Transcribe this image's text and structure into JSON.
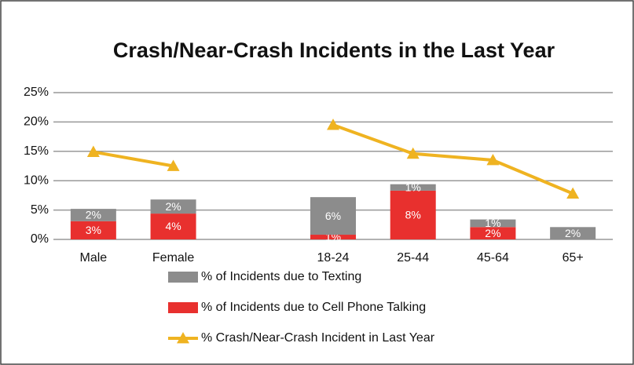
{
  "chart_data": {
    "type": "bar-line",
    "title": "Crash/Near-Crash Incidents in the Last Year",
    "categories": [
      "Male",
      "Female",
      null,
      "18-24",
      "25-44",
      "45-64",
      "65+"
    ],
    "series": [
      {
        "name": "% of Incidents due to Cell Phone Talking",
        "kind": "bar",
        "color": "#e8302e",
        "values": [
          3.1,
          4.4,
          null,
          0.8,
          8.3,
          2.1,
          null
        ],
        "value_labels": [
          "3%",
          "4%",
          null,
          "1%",
          "8%",
          "2%",
          null
        ]
      },
      {
        "name": "% of Incidents due to Texting",
        "kind": "bar",
        "color": "#8c8c8c",
        "values": [
          2.1,
          2.4,
          null,
          6.4,
          1.1,
          1.3,
          2.1
        ],
        "value_labels": [
          "2%",
          "2%",
          null,
          "6%",
          "1%",
          "1%",
          "2%"
        ]
      },
      {
        "name": "% Crash/Near-Crash Incident in Last Year",
        "kind": "line",
        "color": "#efb321",
        "values": [
          14.9,
          12.5,
          null,
          19.5,
          14.6,
          13.5,
          7.8
        ]
      }
    ],
    "ylim": [
      0,
      25
    ],
    "yticks": [
      {
        "value": 0,
        "label": "0%"
      },
      {
        "value": 5,
        "label": "5%"
      },
      {
        "value": 10,
        "label": "10%"
      },
      {
        "value": 15,
        "label": "15%"
      },
      {
        "value": 20,
        "label": "20%"
      },
      {
        "value": 25,
        "label": "25%"
      }
    ],
    "grid": true
  }
}
